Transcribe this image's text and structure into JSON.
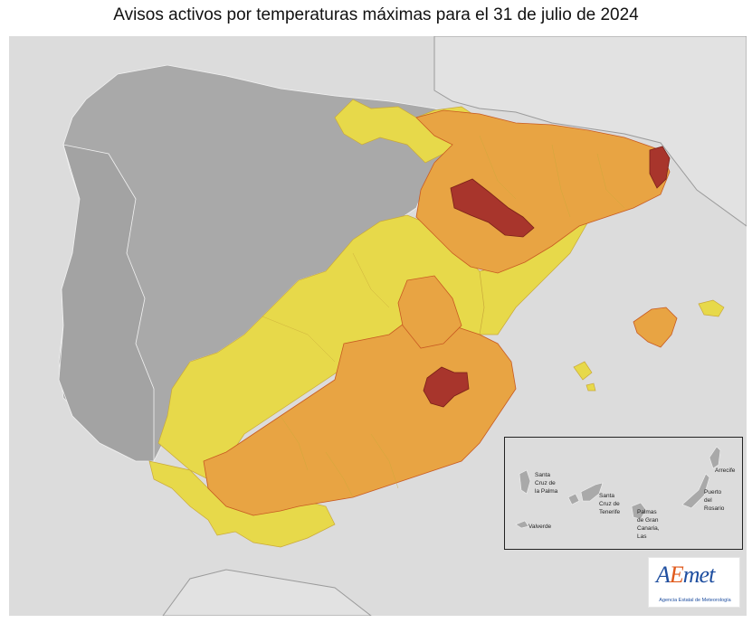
{
  "title": "Avisos activos por temperaturas máximas para el 31 de julio de 2024",
  "colors": {
    "sea": "#dcdcdc",
    "land_no_warning": "#a9a9a9",
    "yellow": "#e7d94a",
    "orange": "#e8a443",
    "red": "#a8352c",
    "border_line": "#ffffff"
  },
  "legend_levels": [
    "yellow",
    "orange",
    "red"
  ],
  "canary_inset": {
    "labels": [
      {
        "id": "santa-cruz-palma",
        "text": "Santa\nCruz de\nla Palma"
      },
      {
        "id": "santa-cruz-tenerife",
        "text": "Santa\nCruz de\nTenerife"
      },
      {
        "id": "las-palmas",
        "text": "Palmas\nde Gran\nCanaria,\nLas"
      },
      {
        "id": "arrecife",
        "text": "Arrecife"
      },
      {
        "id": "puerto-rosario",
        "text": "Puerto\ndel\nRosario"
      },
      {
        "id": "valverde",
        "text": "Valverde"
      }
    ]
  },
  "logo": {
    "mark_a": "A",
    "mark_e": "E",
    "mark_rest": "met",
    "subtitle": "Agencia Estatal de Meteorología"
  }
}
